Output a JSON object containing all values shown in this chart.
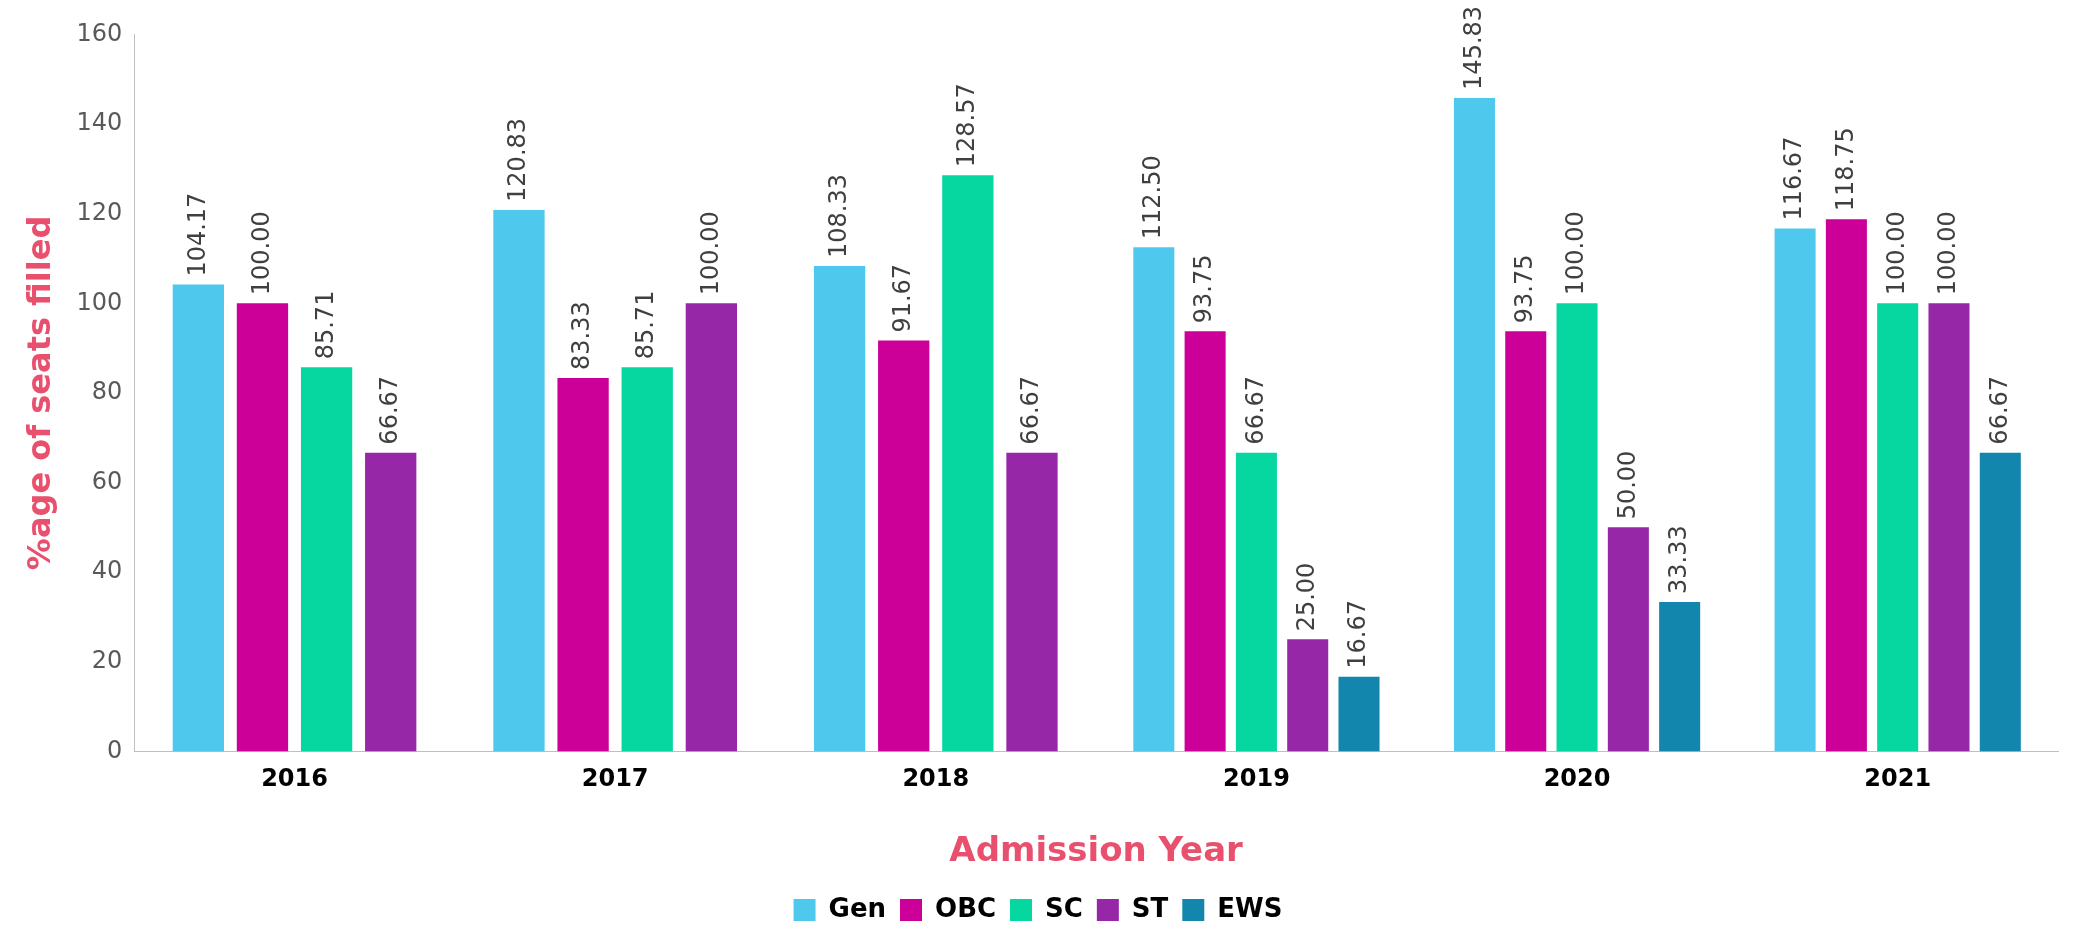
{
  "chart_data": {
    "type": "bar",
    "xlabel": "Admission Year",
    "ylabel": "%age of seats filled",
    "categories": [
      "2016",
      "2017",
      "2018",
      "2019",
      "2020",
      "2021"
    ],
    "series": [
      {
        "name": "Gen",
        "color": "#4fc8ee",
        "values": [
          104.17,
          120.83,
          108.33,
          112.5,
          145.83,
          116.67
        ],
        "value_labels": [
          "104.17",
          "120.83",
          "108.33",
          "112.50",
          "145.83",
          "116.67"
        ]
      },
      {
        "name": "OBC",
        "color": "#cc0099",
        "values": [
          100,
          83.33,
          91.67,
          93.75,
          93.75,
          118.75
        ],
        "value_labels": [
          "100.00",
          "83.33",
          "91.67",
          "93.75",
          "93.75",
          "118.75"
        ]
      },
      {
        "name": "SC",
        "color": "#06d6a0",
        "values": [
          85.71,
          85.71,
          128.57,
          66.67,
          100,
          100
        ],
        "value_labels": [
          "85.71",
          "85.71",
          "128.57",
          "66.67",
          "100.00",
          "100.00"
        ]
      },
      {
        "name": "ST",
        "color": "#9628a8",
        "values": [
          66.67,
          100,
          66.67,
          25,
          50,
          100
        ],
        "value_labels": [
          "66.67",
          "100.00",
          "66.67",
          "25.00",
          "50.00",
          "100.00"
        ]
      },
      {
        "name": "EWS",
        "color": "#1286ad",
        "values": [
          null,
          null,
          null,
          16.67,
          33.33,
          66.67
        ],
        "value_labels": [
          null,
          null,
          null,
          "16.67",
          "33.33",
          "66.67"
        ]
      }
    ],
    "ylim": [
      0,
      160
    ],
    "yticks": [
      0,
      20,
      40,
      60,
      80,
      100,
      120,
      140,
      160
    ],
    "grid": false,
    "legend": "bottom"
  }
}
